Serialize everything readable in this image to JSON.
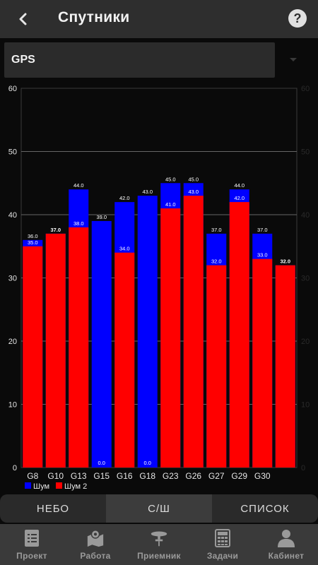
{
  "header": {
    "title": "Спутники",
    "back_icon": "chevron-left-icon",
    "help_icon": "question-circle-icon"
  },
  "select": {
    "value": "GPS"
  },
  "chart_data": {
    "type": "bar",
    "categories": [
      "G8",
      "G10",
      "G13",
      "G15",
      "G16",
      "G18",
      "G23",
      "G26",
      "G27",
      "G29",
      "G30",
      ""
    ],
    "series": [
      {
        "name": "Шум",
        "color": "#0000ff",
        "values": [
          36.0,
          37.0,
          44.0,
          39.0,
          42.0,
          43.0,
          45.0,
          45.0,
          37.0,
          44.0,
          37.0,
          32.0
        ]
      },
      {
        "name": "Шум 2",
        "color": "#ff0000",
        "values": [
          35.0,
          37.0,
          38.0,
          0.0,
          34.0,
          0.0,
          41.0,
          43.0,
          32.0,
          42.0,
          33.0,
          32.0
        ]
      }
    ],
    "ylim": [
      0,
      60
    ],
    "yticks": [
      "0",
      "10",
      "20",
      "30",
      "40",
      "50",
      "60"
    ],
    "grid": true,
    "legend": "bottom-left"
  },
  "tabs": [
    {
      "label": "НЕБО",
      "active": false
    },
    {
      "label": "С/Ш",
      "active": true
    },
    {
      "label": "СПИСОК",
      "active": false
    }
  ],
  "nav": [
    {
      "label": "Проект",
      "icon": "document-icon"
    },
    {
      "label": "Работа",
      "icon": "map-pin-icon"
    },
    {
      "label": "Приемник",
      "icon": "receiver-icon"
    },
    {
      "label": "Задачи",
      "icon": "calculator-icon"
    },
    {
      "label": "Кабинет",
      "icon": "user-icon"
    }
  ]
}
